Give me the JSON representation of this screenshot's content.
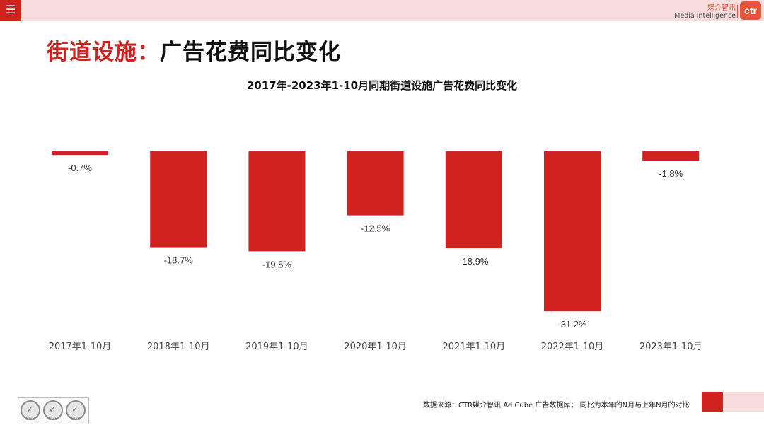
{
  "header": {
    "menu_icon": "menu-icon",
    "brand_cn": "媒介智讯",
    "brand_en": "Media Intelligence",
    "brand_logo": "ctr"
  },
  "page_title": {
    "accent": "街道设施：",
    "rest": "广告花费同比变化"
  },
  "chart_data": {
    "type": "bar",
    "title": "2017年-2023年1-10月同期街道设施广告花费同比变化",
    "categories": [
      "2017年1-10月",
      "2018年1-10月",
      "2019年1-10月",
      "2020年1-10月",
      "2021年1-10月",
      "2022年1-10月",
      "2023年1-10月"
    ],
    "values": [
      -0.7,
      -18.7,
      -19.5,
      -12.5,
      -18.9,
      -31.2,
      -1.8
    ],
    "value_labels": [
      "-0.7%",
      "-18.7%",
      "-19.5%",
      "-12.5%",
      "-18.9%",
      "-31.2%",
      "-1.8%"
    ],
    "xlabel": "",
    "ylabel": "",
    "ylim": [
      -35,
      0
    ],
    "grid": false,
    "legend": "none",
    "bar_color": "#d0231d"
  },
  "footer": {
    "source": "数据来源：CTR媒介智讯 Ad Cube 广告数据库；  同比为本年的N月与上年N月的对比",
    "badge_label": "SGS"
  },
  "colors": {
    "accent": "#d0231d",
    "pink": "#f6dcdc"
  }
}
